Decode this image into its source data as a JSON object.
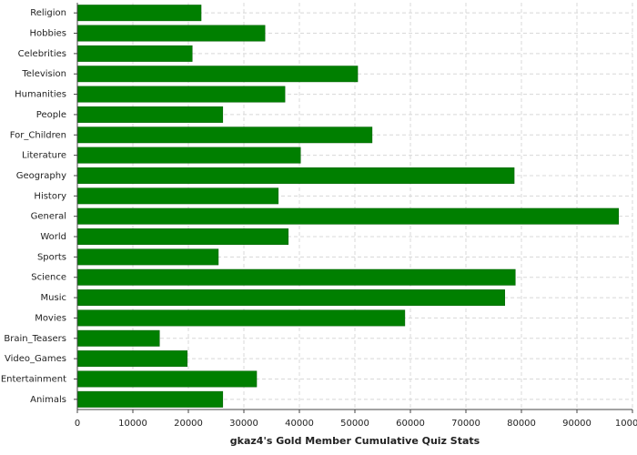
{
  "chart_data": {
    "type": "hbar",
    "x_label": "gkaz4's Gold Member Cumulative Quiz Stats",
    "categories": [
      "Religion",
      "Hobbies",
      "Celebrities",
      "Television",
      "Humanities",
      "People",
      "For_Children",
      "Literature",
      "Geography",
      "History",
      "General",
      "World",
      "Sports",
      "Science",
      "Music",
      "Movies",
      "Brain_Teasers",
      "Video_Games",
      "Entertainment",
      "Animals"
    ],
    "values": [
      22300,
      33800,
      20700,
      50500,
      37400,
      26200,
      53100,
      40200,
      78700,
      36200,
      97500,
      38000,
      25400,
      78900,
      77000,
      59000,
      14800,
      19800,
      32300,
      26200
    ],
    "color": "#007f00",
    "xlim": [
      0,
      100000
    ],
    "xticks": [
      0,
      10000,
      20000,
      30000,
      40000,
      50000,
      60000,
      70000,
      80000,
      90000,
      100000
    ],
    "grid": true
  }
}
